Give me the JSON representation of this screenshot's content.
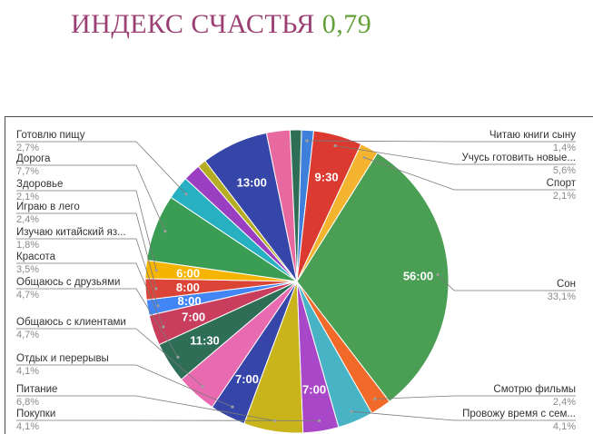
{
  "header": {
    "title": "ИНДЕКС СЧАСТЬЯ",
    "value": "0,79"
  },
  "colors": {
    "title": "#9b3f73",
    "value": "#64a03a"
  },
  "chart_data": {
    "type": "pie",
    "title": "",
    "slices": [
      {
        "name": "Читаю книги сыну",
        "pct": "1,4%",
        "value": 1.4,
        "color": "#3f7fdc",
        "inner": ""
      },
      {
        "name": "Учусь готовить новые...",
        "pct": "5,6%",
        "value": 5.6,
        "color": "#db3a31",
        "inner": "9:30"
      },
      {
        "name": "Спорт",
        "pct": "2,1%",
        "value": 2.1,
        "color": "#f4b430",
        "inner": ""
      },
      {
        "name": "Сон",
        "pct": "33,1%",
        "value": 33.1,
        "color": "#4b9f55",
        "inner": "56:00"
      },
      {
        "name": "Смотрю фильмы",
        "pct": "2,4%",
        "value": 2.4,
        "color": "#f26a2a",
        "inner": ""
      },
      {
        "name": "Провожу время с сем...",
        "pct": "4,1%",
        "value": 4.1,
        "color": "#49b3c6",
        "inner": ""
      },
      {
        "name": "Покупки",
        "pct": "4,1%",
        "value": 4.1,
        "color": "#a947c9",
        "inner": "7:00"
      },
      {
        "name": "Питание",
        "pct": "6,8%",
        "value": 6.8,
        "color": "#c9b41c",
        "inner": ""
      },
      {
        "name": "Отдых и перерывы",
        "pct": "4,1%",
        "value": 4.1,
        "color": "#3545a8",
        "inner": "7:00"
      },
      {
        "name": "Общаюсь с клиентами",
        "pct": "4,7%",
        "value": 4.7,
        "color": "#e86ab0",
        "inner": ""
      },
      {
        "name": "Общаюсь с друзьями",
        "pct": "4,7%",
        "value": 4.7,
        "color": "#2e6e57",
        "inner": "11:30"
      },
      {
        "name": "Красота",
        "pct": "3,5%",
        "value": 3.5,
        "color": "#c83e5c",
        "inner": "7:00"
      },
      {
        "name": "Изучаю китайский яз...",
        "pct": "1,8%",
        "value": 1.8,
        "color": "#4285f4",
        "inner": "8:00"
      },
      {
        "name": "Играю в лего",
        "pct": "2,4%",
        "value": 2.4,
        "color": "#db4437",
        "inner": "8:00"
      },
      {
        "name": "Здоровье",
        "pct": "2,1%",
        "value": 2.1,
        "color": "#f4b400",
        "inner": "6:00"
      },
      {
        "name": "Дорога",
        "pct": "7,7%",
        "value": 7.7,
        "color": "#3b9c54",
        "inner": ""
      },
      {
        "name": "Готовлю пищу",
        "pct": "2,7%",
        "value": 2.7,
        "color": "#26b0c2",
        "inner": ""
      },
      {
        "name": "",
        "pct": "",
        "value": 2.0,
        "color": "#9a3fc2",
        "inner": ""
      },
      {
        "name": "",
        "pct": "",
        "value": 1.0,
        "color": "#b5ad22",
        "inner": ""
      },
      {
        "name": "",
        "pct": "",
        "value": 7.7,
        "color": "#3545a8",
        "inner": "13:00"
      },
      {
        "name": "",
        "pct": "",
        "value": 2.7,
        "color": "#e8699f",
        "inner": ""
      },
      {
        "name": "",
        "pct": "",
        "value": 1.3,
        "color": "#2e6e57",
        "inner": ""
      }
    ]
  }
}
